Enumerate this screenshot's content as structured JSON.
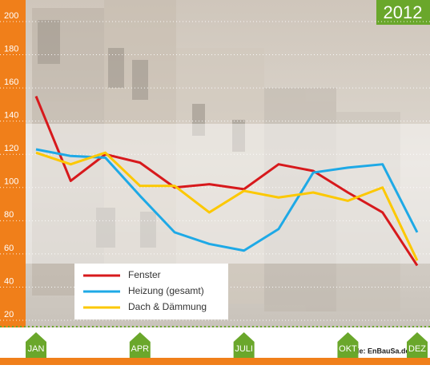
{
  "chart_data": {
    "type": "line",
    "badge": "2012",
    "source": "Quelle: EnBauSa.de",
    "categories": [
      "JAN",
      null,
      null,
      "APR",
      null,
      null,
      "JULI",
      null,
      null,
      "OKT",
      null,
      "DEZ"
    ],
    "series": [
      {
        "name": "Fenster",
        "color": "#d7191c",
        "values": [
          155,
          104,
          120,
          115,
          100,
          102,
          99,
          114,
          110,
          97,
          85,
          53
        ]
      },
      {
        "name": "Heizung (gesamt)",
        "color": "#1ea9e6",
        "values": [
          123,
          119,
          118,
          95,
          73,
          66,
          62,
          75,
          109,
          112,
          114,
          73
        ]
      },
      {
        "name": "Dach & Dämmung",
        "color": "#fcc800",
        "values": [
          121,
          114,
          121,
          101,
          101,
          85,
          98,
          94,
          97,
          92,
          100,
          56
        ]
      }
    ],
    "ylim": [
      20,
      200
    ],
    "yticks": [
      20,
      40,
      60,
      80,
      100,
      120,
      140,
      160,
      180,
      200
    ],
    "grid": true
  }
}
